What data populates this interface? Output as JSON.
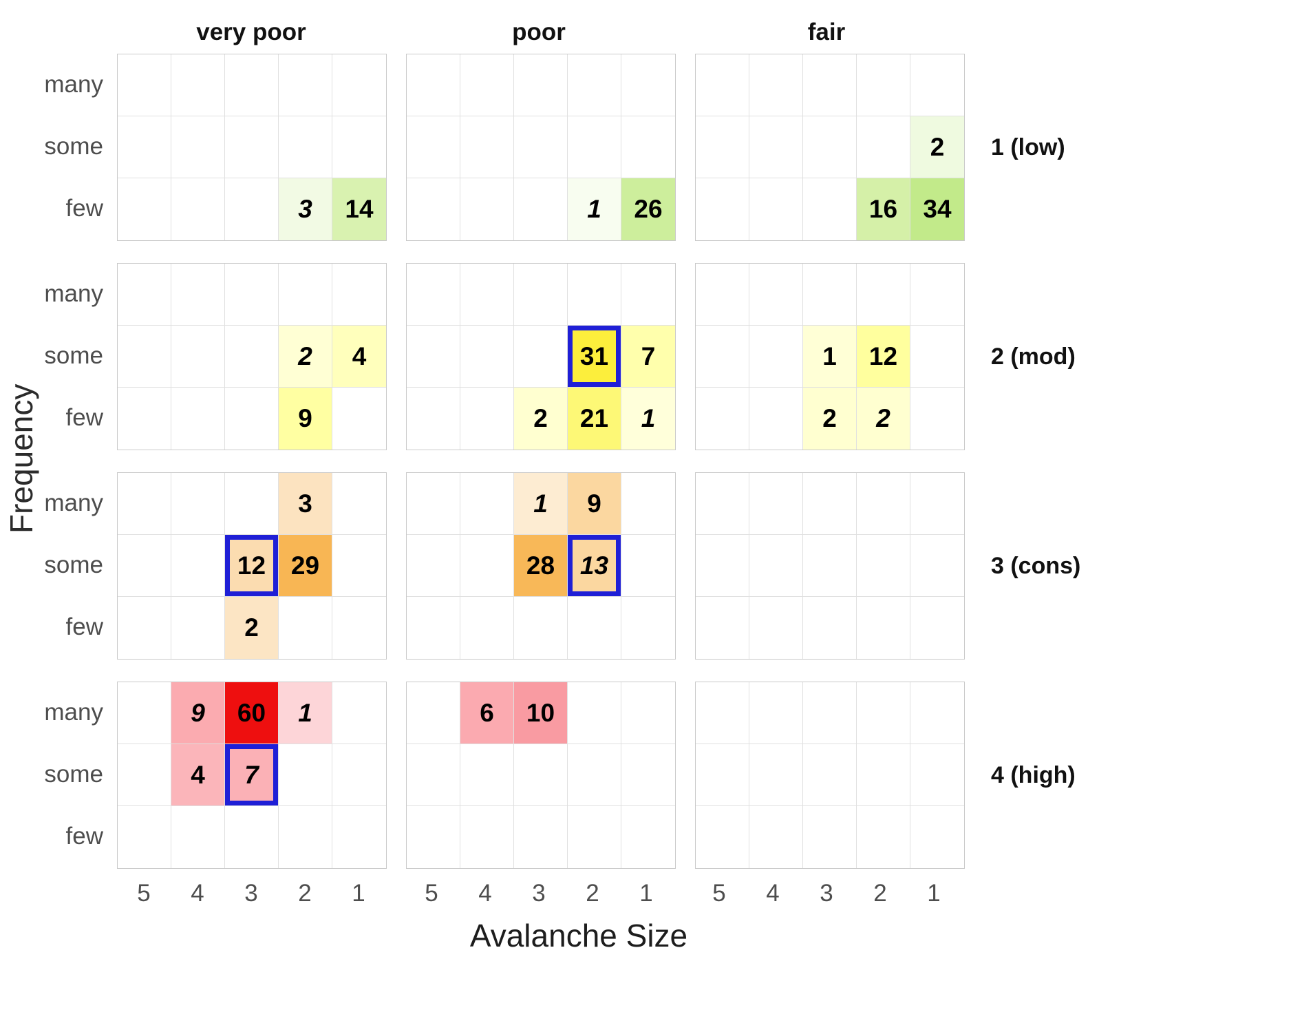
{
  "chart_data": {
    "type": "heatmap",
    "title": "",
    "xlabel": "Avalanche Size",
    "ylabel": "Frequency",
    "x_ticks": [
      "5",
      "4",
      "3",
      "2",
      "1"
    ],
    "y_ticks": [
      "many",
      "some",
      "few"
    ],
    "col_facets": [
      "very poor",
      "poor",
      "fair"
    ],
    "row_facets": [
      "1 (low)",
      "2 (mod)",
      "3 (cons)",
      "4 (high)"
    ],
    "outline_color": "#1f1fd6",
    "cells": [
      {
        "row": 0,
        "col": 0,
        "freq": "few",
        "size": "2",
        "value": "3",
        "italic": true,
        "outlined": false,
        "bg": "#f2fae4"
      },
      {
        "row": 0,
        "col": 0,
        "freq": "few",
        "size": "1",
        "value": "14",
        "italic": false,
        "outlined": false,
        "bg": "#d9f2b0"
      },
      {
        "row": 0,
        "col": 1,
        "freq": "few",
        "size": "2",
        "value": "1",
        "italic": true,
        "outlined": false,
        "bg": "#f8fdf0"
      },
      {
        "row": 0,
        "col": 1,
        "freq": "few",
        "size": "1",
        "value": "26",
        "italic": false,
        "outlined": false,
        "bg": "#cdee9c"
      },
      {
        "row": 0,
        "col": 2,
        "freq": "some",
        "size": "1",
        "value": "2",
        "italic": false,
        "outlined": false,
        "bg": "#effae0"
      },
      {
        "row": 0,
        "col": 2,
        "freq": "few",
        "size": "2",
        "value": "16",
        "italic": false,
        "outlined": false,
        "bg": "#d5f0a8"
      },
      {
        "row": 0,
        "col": 2,
        "freq": "few",
        "size": "1",
        "value": "34",
        "italic": false,
        "outlined": false,
        "bg": "#c2ea8a"
      },
      {
        "row": 1,
        "col": 0,
        "freq": "some",
        "size": "2",
        "value": "2",
        "italic": true,
        "outlined": false,
        "bg": "#ffffd4"
      },
      {
        "row": 1,
        "col": 0,
        "freq": "some",
        "size": "1",
        "value": "4",
        "italic": false,
        "outlined": false,
        "bg": "#ffffbc"
      },
      {
        "row": 1,
        "col": 0,
        "freq": "few",
        "size": "2",
        "value": "9",
        "italic": false,
        "outlined": false,
        "bg": "#ffffa2"
      },
      {
        "row": 1,
        "col": 1,
        "freq": "some",
        "size": "2",
        "value": "31",
        "italic": false,
        "outlined": true,
        "bg": "#fcee3c"
      },
      {
        "row": 1,
        "col": 1,
        "freq": "some",
        "size": "1",
        "value": "7",
        "italic": false,
        "outlined": false,
        "bg": "#ffffac"
      },
      {
        "row": 1,
        "col": 1,
        "freq": "few",
        "size": "3",
        "value": "2",
        "italic": false,
        "outlined": false,
        "bg": "#ffffd0"
      },
      {
        "row": 1,
        "col": 1,
        "freq": "few",
        "size": "2",
        "value": "21",
        "italic": false,
        "outlined": false,
        "bg": "#fdf876"
      },
      {
        "row": 1,
        "col": 1,
        "freq": "few",
        "size": "1",
        "value": "1",
        "italic": true,
        "outlined": false,
        "bg": "#ffffda"
      },
      {
        "row": 1,
        "col": 2,
        "freq": "some",
        "size": "3",
        "value": "1",
        "italic": false,
        "outlined": false,
        "bg": "#ffffd6"
      },
      {
        "row": 1,
        "col": 2,
        "freq": "some",
        "size": "2",
        "value": "12",
        "italic": false,
        "outlined": false,
        "bg": "#ffff9e"
      },
      {
        "row": 1,
        "col": 2,
        "freq": "few",
        "size": "3",
        "value": "2",
        "italic": false,
        "outlined": false,
        "bg": "#ffffd0"
      },
      {
        "row": 1,
        "col": 2,
        "freq": "few",
        "size": "2",
        "value": "2",
        "italic": true,
        "outlined": false,
        "bg": "#ffffd0"
      },
      {
        "row": 2,
        "col": 0,
        "freq": "many",
        "size": "2",
        "value": "3",
        "italic": false,
        "outlined": false,
        "bg": "#fce3c0"
      },
      {
        "row": 2,
        "col": 0,
        "freq": "some",
        "size": "3",
        "value": "12",
        "italic": false,
        "outlined": true,
        "bg": "#fbdcb0"
      },
      {
        "row": 2,
        "col": 0,
        "freq": "some",
        "size": "2",
        "value": "29",
        "italic": false,
        "outlined": false,
        "bg": "#f8b654"
      },
      {
        "row": 2,
        "col": 0,
        "freq": "few",
        "size": "3",
        "value": "2",
        "italic": false,
        "outlined": false,
        "bg": "#fce5c4"
      },
      {
        "row": 2,
        "col": 1,
        "freq": "many",
        "size": "3",
        "value": "1",
        "italic": true,
        "outlined": false,
        "bg": "#fdecd2"
      },
      {
        "row": 2,
        "col": 1,
        "freq": "many",
        "size": "2",
        "value": "9",
        "italic": false,
        "outlined": false,
        "bg": "#fbd7a0"
      },
      {
        "row": 2,
        "col": 1,
        "freq": "some",
        "size": "3",
        "value": "28",
        "italic": false,
        "outlined": false,
        "bg": "#f8b858"
      },
      {
        "row": 2,
        "col": 1,
        "freq": "some",
        "size": "2",
        "value": "13",
        "italic": true,
        "outlined": true,
        "bg": "#fbd7a0"
      },
      {
        "row": 3,
        "col": 0,
        "freq": "many",
        "size": "4",
        "value": "9",
        "italic": true,
        "outlined": false,
        "bg": "#fbabb0"
      },
      {
        "row": 3,
        "col": 0,
        "freq": "many",
        "size": "3",
        "value": "60",
        "italic": false,
        "outlined": false,
        "bg": "#ee0f0f"
      },
      {
        "row": 3,
        "col": 0,
        "freq": "many",
        "size": "2",
        "value": "1",
        "italic": true,
        "outlined": false,
        "bg": "#fdd5d8"
      },
      {
        "row": 3,
        "col": 0,
        "freq": "some",
        "size": "4",
        "value": "4",
        "italic": false,
        "outlined": false,
        "bg": "#fbb5ba"
      },
      {
        "row": 3,
        "col": 0,
        "freq": "some",
        "size": "3",
        "value": "7",
        "italic": true,
        "outlined": true,
        "bg": "#fbb1b6"
      },
      {
        "row": 3,
        "col": 1,
        "freq": "many",
        "size": "4",
        "value": "6",
        "italic": false,
        "outlined": false,
        "bg": "#fbaab0"
      },
      {
        "row": 3,
        "col": 1,
        "freq": "many",
        "size": "3",
        "value": "10",
        "italic": false,
        "outlined": false,
        "bg": "#f99ba2"
      }
    ]
  }
}
